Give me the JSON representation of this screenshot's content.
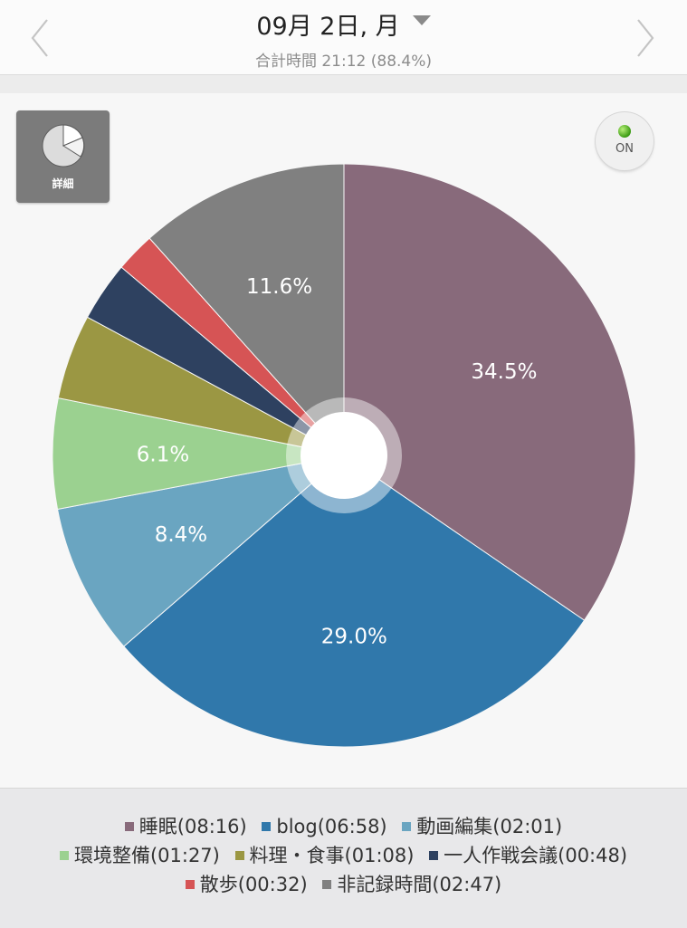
{
  "header": {
    "date": "09月 2日, 月",
    "subtitle": "合計時間 21:12 (88.4%)"
  },
  "detail_button": {
    "label": "詳細"
  },
  "toggle": {
    "label": "ON"
  },
  "colors": {
    "slices": [
      "#886a7b",
      "#3078ab",
      "#6aa5c1",
      "#9bd190",
      "#9b9743",
      "#2e4160",
      "#d65455",
      "#808080"
    ]
  },
  "chart_data": {
    "type": "pie",
    "title": "",
    "slices": [
      {
        "label": "睡眠",
        "duration": "08:16",
        "value": 34.5,
        "data_label": "34.5%",
        "color": "#886a7b"
      },
      {
        "label": "blog",
        "duration": "06:58",
        "value": 29.0,
        "data_label": "29.0%",
        "color": "#3078ab"
      },
      {
        "label": "動画編集",
        "duration": "02:01",
        "value": 8.4,
        "data_label": "8.4%",
        "color": "#6aa5c1"
      },
      {
        "label": "環境整備",
        "duration": "01:27",
        "value": 6.1,
        "data_label": "6.1%",
        "color": "#9bd190"
      },
      {
        "label": "料理・食事",
        "duration": "01:08",
        "value": 4.7,
        "data_label": "",
        "color": "#9b9743"
      },
      {
        "label": "一人作戦会議",
        "duration": "00:48",
        "value": 3.3,
        "data_label": "",
        "color": "#2e4160"
      },
      {
        "label": "散歩",
        "duration": "00:32",
        "value": 2.2,
        "data_label": "",
        "color": "#d65455"
      },
      {
        "label": "非記録時間",
        "duration": "02:47",
        "value": 11.6,
        "data_label": "11.6%",
        "color": "#808080"
      }
    ],
    "start_angle": "12 o'clock",
    "direction": "clockwise",
    "legend_position": "bottom"
  },
  "legend": {
    "rows": [
      [
        {
          "text": "睡眠(08:16)",
          "color": "#886a7b"
        },
        {
          "text": "blog(06:58)",
          "color": "#3078ab"
        },
        {
          "text": "動画編集(02:01)",
          "color": "#6aa5c1"
        }
      ],
      [
        {
          "text": "環境整備(01:27)",
          "color": "#9bd190"
        },
        {
          "text": "料理・食事(01:08)",
          "color": "#9b9743"
        },
        {
          "text": "一人作戦会議(00:48)",
          "color": "#2e4160"
        }
      ],
      [
        {
          "text": "散歩(00:32)",
          "color": "#d65455"
        },
        {
          "text": "非記録時間(02:47)",
          "color": "#808080"
        }
      ]
    ]
  }
}
